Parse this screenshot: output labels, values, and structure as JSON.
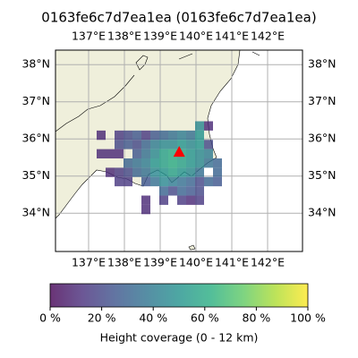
{
  "chart_data": {
    "type": "gridmap",
    "title": "0163fe6c7d7ea1ea (0163fe6c7d7ea1ea)",
    "xlim": [
      136.075,
      142.975
    ],
    "ylim": [
      32.97,
      38.39
    ],
    "xticks": [
      {
        "value": 137,
        "label": "137°E"
      },
      {
        "value": 138,
        "label": "138°E"
      },
      {
        "value": 139,
        "label": "139°E"
      },
      {
        "value": 140,
        "label": "140°E"
      },
      {
        "value": 141,
        "label": "141°E"
      },
      {
        "value": 142,
        "label": "142°E"
      }
    ],
    "yticks": [
      {
        "value": 34,
        "label": "34°N"
      },
      {
        "value": 35,
        "label": "35°N"
      },
      {
        "value": 36,
        "label": "36°N"
      },
      {
        "value": 37,
        "label": "37°N"
      },
      {
        "value": 38,
        "label": "38°N"
      }
    ],
    "grid": true,
    "cell_size": 0.25,
    "cells": [
      [
        140.1,
        36.35,
        45
      ],
      [
        140.35,
        36.35,
        10
      ],
      [
        137.35,
        36.1,
        10
      ],
      [
        137.85,
        36.1,
        15
      ],
      [
        138.1,
        36.1,
        20
      ],
      [
        138.35,
        36.1,
        25
      ],
      [
        138.6,
        36.1,
        15
      ],
      [
        138.85,
        36.1,
        25
      ],
      [
        139.1,
        36.1,
        30
      ],
      [
        139.35,
        36.1,
        35
      ],
      [
        139.6,
        36.1,
        40
      ],
      [
        139.85,
        36.1,
        35
      ],
      [
        140.1,
        36.1,
        50
      ],
      [
        137.85,
        35.85,
        20
      ],
      [
        138.1,
        35.85,
        25
      ],
      [
        138.35,
        35.85,
        20
      ],
      [
        138.6,
        35.85,
        30
      ],
      [
        138.85,
        35.85,
        40
      ],
      [
        139.1,
        35.85,
        45
      ],
      [
        139.35,
        35.85,
        45
      ],
      [
        139.6,
        35.85,
        50
      ],
      [
        139.85,
        35.85,
        45
      ],
      [
        140.1,
        35.85,
        50
      ],
      [
        140.35,
        35.85,
        20
      ],
      [
        137.35,
        35.6,
        10
      ],
      [
        137.6,
        35.6,
        10
      ],
      [
        137.85,
        35.6,
        10
      ],
      [
        138.35,
        35.6,
        25
      ],
      [
        138.6,
        35.6,
        35
      ],
      [
        138.85,
        35.6,
        45
      ],
      [
        139.1,
        35.6,
        55
      ],
      [
        139.35,
        35.6,
        60
      ],
      [
        139.6,
        35.6,
        55
      ],
      [
        139.85,
        35.6,
        50
      ],
      [
        140.1,
        35.6,
        45
      ],
      [
        140.35,
        35.6,
        40
      ],
      [
        138.1,
        35.35,
        30
      ],
      [
        138.35,
        35.35,
        35
      ],
      [
        138.6,
        35.35,
        40
      ],
      [
        138.85,
        35.35,
        50
      ],
      [
        139.1,
        35.35,
        55
      ],
      [
        139.35,
        35.35,
        60
      ],
      [
        139.6,
        35.35,
        55
      ],
      [
        139.85,
        35.35,
        50
      ],
      [
        140.1,
        35.35,
        45
      ],
      [
        140.35,
        35.35,
        35
      ],
      [
        140.6,
        35.35,
        30
      ],
      [
        137.6,
        35.1,
        10
      ],
      [
        137.85,
        35.1,
        15
      ],
      [
        138.1,
        35.1,
        20
      ],
      [
        138.35,
        35.1,
        30
      ],
      [
        138.6,
        35.1,
        35
      ],
      [
        138.85,
        35.1,
        45
      ],
      [
        139.1,
        35.1,
        50
      ],
      [
        139.35,
        35.1,
        55
      ],
      [
        139.6,
        35.1,
        50
      ],
      [
        139.85,
        35.1,
        45
      ],
      [
        140.1,
        35.1,
        35
      ],
      [
        140.6,
        35.1,
        30
      ],
      [
        137.85,
        34.85,
        15
      ],
      [
        138.1,
        34.85,
        15
      ],
      [
        138.6,
        34.85,
        25
      ],
      [
        138.85,
        34.85,
        35
      ],
      [
        139.1,
        34.85,
        45
      ],
      [
        139.35,
        34.85,
        40
      ],
      [
        139.6,
        34.85,
        35
      ],
      [
        139.85,
        34.85,
        30
      ],
      [
        140.1,
        34.85,
        20
      ],
      [
        140.35,
        34.85,
        30
      ],
      [
        140.6,
        34.85,
        25
      ],
      [
        139.1,
        34.6,
        30
      ],
      [
        139.35,
        34.6,
        20
      ],
      [
        139.6,
        34.6,
        30
      ],
      [
        139.85,
        34.6,
        25
      ],
      [
        140.1,
        34.6,
        20
      ],
      [
        138.6,
        34.35,
        10
      ],
      [
        139.1,
        34.35,
        15
      ],
      [
        139.6,
        34.35,
        15
      ],
      [
        139.85,
        34.35,
        10
      ],
      [
        140.1,
        34.35,
        15
      ],
      [
        138.6,
        34.1,
        10
      ]
    ],
    "cell_opacity": 0.8,
    "marker": {
      "lon": 139.53,
      "lat": 35.64,
      "color": "#ff0000"
    },
    "colormap": [
      "#440154",
      "#472d7b",
      "#3b528b",
      "#2c728e",
      "#21918c",
      "#28ae80",
      "#5ec962",
      "#addc30",
      "#fde725"
    ],
    "colorbar": {
      "label": "Height coverage (0 - 12 km)",
      "lim": [
        0,
        100
      ],
      "ticks": [
        {
          "value": 0,
          "label": "0 %"
        },
        {
          "value": 20,
          "label": "20 %"
        },
        {
          "value": 40,
          "label": "40 %"
        },
        {
          "value": 60,
          "label": "60 %"
        },
        {
          "value": 80,
          "label": "80 %"
        },
        {
          "value": 100,
          "label": "100 %"
        }
      ]
    }
  }
}
